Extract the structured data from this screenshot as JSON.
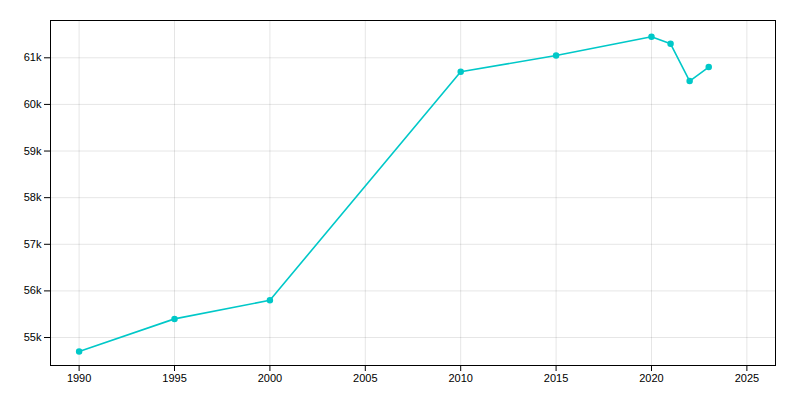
{
  "chart_data": {
    "type": "line",
    "x": [
      1990,
      1995,
      2000,
      2010,
      2015,
      2020,
      2021,
      2022,
      2023
    ],
    "values": [
      54700,
      55400,
      55800,
      60700,
      61050,
      61450,
      61300,
      60500,
      60800
    ],
    "color": "#00C8C8",
    "marker": "circle",
    "xlim": [
      1988.5,
      2026.5
    ],
    "ylim": [
      54400,
      61800
    ],
    "xticks": [
      1990,
      1995,
      2000,
      2005,
      2010,
      2015,
      2020,
      2025
    ],
    "yticks": [
      {
        "value": 55000,
        "label": "55k"
      },
      {
        "value": 56000,
        "label": "56k"
      },
      {
        "value": 57000,
        "label": "57k"
      },
      {
        "value": 58000,
        "label": "58k"
      },
      {
        "value": 59000,
        "label": "59k"
      },
      {
        "value": 60000,
        "label": "60k"
      },
      {
        "value": 61000,
        "label": "61k"
      }
    ],
    "grid": true
  }
}
